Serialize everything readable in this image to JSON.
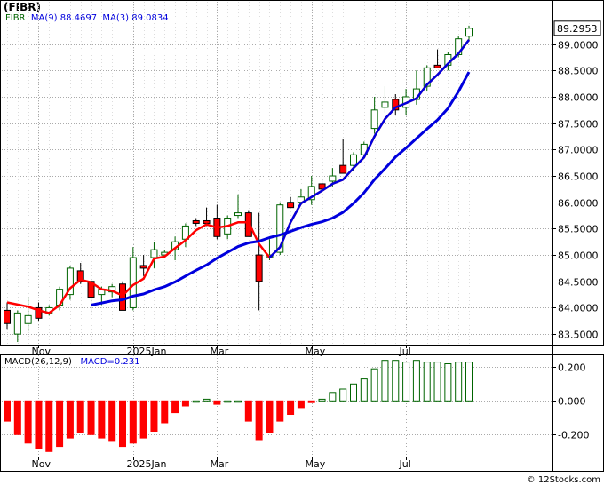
{
  "chart_title": "(FIBR)",
  "credit": "© 12Stocks.com",
  "price_panel": {
    "legend": {
      "ticker": "FIBR",
      "ma9_label": "MA(9)",
      "ma9_value": "88.4697",
      "ma3_label": "MA(3)",
      "ma3_value": "89.0834"
    },
    "last_price_label": "89.2953",
    "y_ticks": [
      "83.5000",
      "84.0000",
      "84.5000",
      "85.0000",
      "85.5000",
      "86.0000",
      "86.5000",
      "87.0000",
      "87.5000",
      "88.0000",
      "88.5000",
      "89.0000"
    ],
    "x_ticks": [
      "Nov",
      "2025Jan",
      "Mar",
      "May",
      "Jul"
    ]
  },
  "macd_panel": {
    "legend": {
      "label": "MACD(26,12,9)",
      "value_label": "MACD=0.231"
    },
    "y_ticks": [
      "0.200",
      "0.000",
      "-0.200"
    ],
    "x_ticks": [
      "Nov",
      "2025Jan",
      "Mar",
      "May",
      "Jul"
    ]
  },
  "colors": {
    "up": "#006400",
    "down": "#ff0000",
    "ma9": "#0000dd",
    "ma3": "#ff0000",
    "grid": "#aaaaaa",
    "macd_up": "#006400",
    "macd_down": "#ff0000"
  },
  "chart_data": [
    {
      "type": "candlestick",
      "title": "(FIBR)",
      "grid": true,
      "ylim": [
        83.3,
        89.6
      ],
      "x_tick_positions": {
        "Nov": 3,
        "2025Jan": 12,
        "Mar": 20,
        "May": 29,
        "Jul": 38
      },
      "ohlc": [
        [
          83.95,
          84.1,
          83.6,
          83.7
        ],
        [
          83.5,
          83.95,
          83.35,
          83.9
        ],
        [
          83.7,
          84.2,
          83.55,
          83.85
        ],
        [
          84.0,
          84.1,
          83.75,
          83.8
        ],
        [
          83.9,
          84.05,
          83.85,
          84.0
        ],
        [
          84.05,
          84.4,
          83.95,
          84.35
        ],
        [
          84.25,
          84.8,
          84.15,
          84.75
        ],
        [
          84.7,
          84.85,
          84.45,
          84.5
        ],
        [
          84.5,
          84.55,
          83.9,
          84.2
        ],
        [
          84.25,
          84.4,
          84.05,
          84.35
        ],
        [
          84.3,
          84.45,
          84.2,
          84.4
        ],
        [
          84.45,
          84.5,
          83.95,
          83.95
        ],
        [
          84.0,
          85.15,
          83.95,
          84.95
        ],
        [
          84.8,
          85.0,
          84.6,
          84.75
        ],
        [
          84.95,
          85.25,
          84.75,
          85.1
        ],
        [
          85.0,
          85.1,
          84.95,
          85.05
        ],
        [
          85.1,
          85.35,
          84.9,
          85.25
        ],
        [
          85.3,
          85.6,
          85.15,
          85.55
        ],
        [
          85.65,
          85.7,
          85.55,
          85.6
        ],
        [
          85.65,
          85.9,
          85.55,
          85.6
        ],
        [
          85.7,
          85.95,
          85.3,
          85.35
        ],
        [
          85.4,
          85.75,
          85.3,
          85.7
        ],
        [
          85.75,
          86.15,
          85.7,
          85.8
        ],
        [
          85.8,
          85.85,
          85.4,
          85.35
        ],
        [
          85.0,
          85.8,
          83.95,
          84.5
        ],
        [
          84.95,
          85.3,
          84.9,
          85.0
        ],
        [
          85.05,
          86.0,
          85.0,
          85.95
        ],
        [
          86.0,
          86.1,
          85.9,
          85.9
        ],
        [
          86.0,
          86.25,
          85.95,
          86.1
        ],
        [
          86.05,
          86.5,
          85.95,
          86.3
        ],
        [
          86.35,
          86.45,
          86.2,
          86.25
        ],
        [
          86.4,
          86.65,
          86.3,
          86.5
        ],
        [
          86.7,
          87.2,
          86.55,
          86.55
        ],
        [
          86.7,
          86.95,
          86.6,
          86.9
        ],
        [
          86.9,
          87.15,
          86.85,
          87.1
        ],
        [
          87.4,
          88.0,
          87.3,
          87.75
        ],
        [
          87.8,
          88.2,
          87.7,
          87.9
        ],
        [
          87.95,
          88.05,
          87.65,
          87.75
        ],
        [
          87.8,
          88.15,
          87.65,
          88.0
        ],
        [
          87.95,
          88.5,
          87.85,
          88.15
        ],
        [
          88.2,
          88.6,
          88.1,
          88.55
        ],
        [
          88.6,
          88.9,
          88.55,
          88.55
        ],
        [
          88.6,
          88.85,
          88.5,
          88.8
        ],
        [
          88.8,
          89.15,
          88.75,
          89.1
        ],
        [
          89.15,
          89.35,
          89.05,
          89.3
        ]
      ],
      "ma9": [
        null,
        null,
        null,
        null,
        null,
        null,
        null,
        null,
        84.05,
        84.09,
        84.13,
        84.15,
        84.22,
        84.26,
        84.34,
        84.4,
        84.49,
        84.6,
        84.71,
        84.81,
        84.94,
        85.05,
        85.16,
        85.23,
        85.26,
        85.33,
        85.38,
        85.45,
        85.52,
        85.58,
        85.63,
        85.7,
        85.81,
        85.98,
        86.18,
        86.43,
        86.64,
        86.86,
        87.03,
        87.21,
        87.39,
        87.56,
        87.78,
        88.1,
        88.47
      ],
      "ma3": [
        84.1,
        84.06,
        84.02,
        83.95,
        83.9,
        84.05,
        84.37,
        84.53,
        84.48,
        84.35,
        84.32,
        84.23,
        84.43,
        84.55,
        84.93,
        84.97,
        85.13,
        85.28,
        85.47,
        85.58,
        85.52,
        85.55,
        85.62,
        85.62,
        85.21,
        84.95,
        85.15,
        85.62,
        85.98,
        86.1,
        86.22,
        86.35,
        86.43,
        86.65,
        86.85,
        87.25,
        87.58,
        87.8,
        87.88,
        87.97,
        88.23,
        88.42,
        88.63,
        88.82,
        89.08
      ]
    },
    {
      "type": "bar",
      "title": "MACD(26,12,9)",
      "grid": true,
      "ylim": [
        -0.33,
        0.27
      ],
      "values": [
        -0.12,
        -0.2,
        -0.25,
        -0.28,
        -0.3,
        -0.27,
        -0.22,
        -0.19,
        -0.2,
        -0.22,
        -0.24,
        -0.27,
        -0.25,
        -0.22,
        -0.18,
        -0.13,
        -0.07,
        -0.03,
        0.0,
        0.01,
        -0.02,
        0.0,
        0.0,
        -0.12,
        -0.23,
        -0.19,
        -0.12,
        -0.08,
        -0.04,
        -0.01,
        0.01,
        0.05,
        0.07,
        0.1,
        0.13,
        0.19,
        0.24,
        0.24,
        0.23,
        0.24,
        0.23,
        0.23,
        0.22,
        0.23,
        0.23
      ]
    }
  ]
}
